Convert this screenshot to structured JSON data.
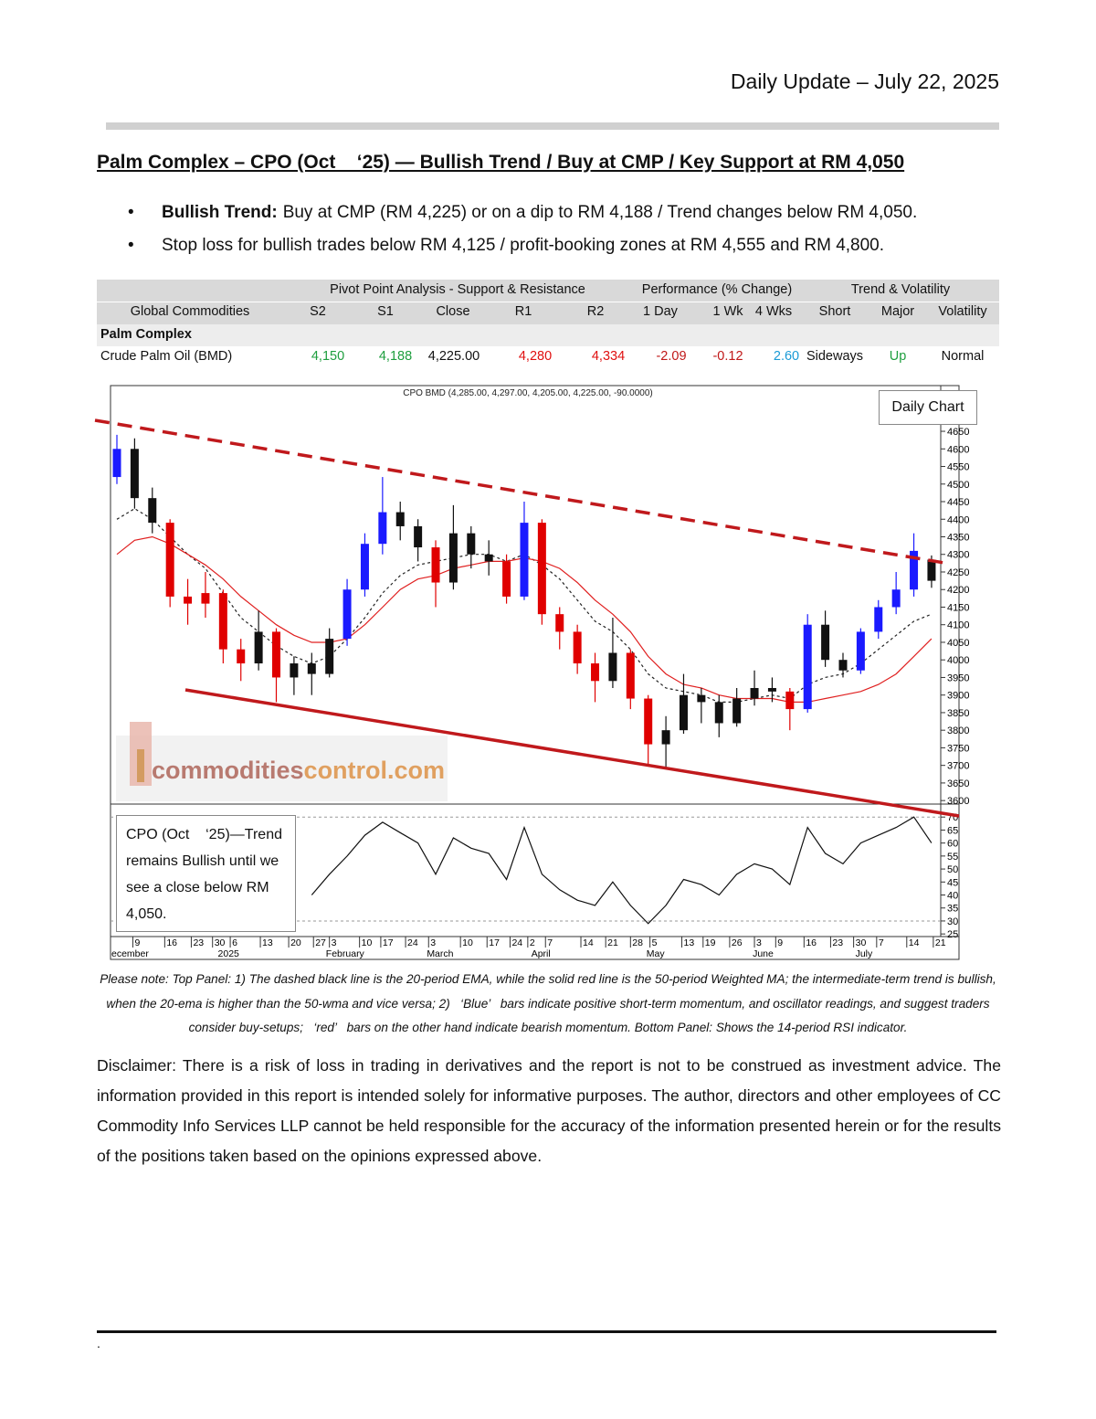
{
  "header": {
    "title": "Daily Update – July 22, 2025"
  },
  "heading": "Palm Complex – CPO (Oct    ‘25) — Bullish Trend / Buy at CMP / Key Support at RM 4,050",
  "bullets": [
    {
      "bold": "Bullish Trend:",
      "text": "Buy at CMP (RM 4,225) or on a dip to RM 4,188 / Trend changes below RM 4,050."
    },
    {
      "text": "Stop loss for bullish trades below RM 4,125 / profit-booking zones at RM 4,555 and RM 4,800."
    }
  ],
  "table": {
    "groups": [
      "Pivot Point Analysis - Support & Resistance",
      "Performance (% Change)",
      "Trend & Volatility"
    ],
    "headers": [
      "Global Commodities",
      "S2",
      "S1",
      "Close",
      "R1",
      "R2",
      "1 Day",
      "1 Wk",
      "4 Wks",
      "Short",
      "Major",
      "Volatility"
    ],
    "section": "Palm Complex",
    "rows": [
      [
        {
          "text": "Crude Palm Oil (BMD)",
          "color": "#111111"
        },
        {
          "text": "4,150",
          "color": "#1e9e3e"
        },
        {
          "text": "4,188",
          "color": "#1e9e3e"
        },
        {
          "text": "4,225.00",
          "color": "#111111"
        },
        {
          "text": "4,280",
          "color": "#e01010"
        },
        {
          "text": "4,334",
          "color": "#e01010"
        },
        {
          "text": "-2.09",
          "color": "#c01818"
        },
        {
          "text": "-0.12",
          "color": "#c01818"
        },
        {
          "text": "2.60",
          "color": "#1a9ad6"
        },
        {
          "text": "Sideways",
          "color": "#111111"
        },
        {
          "text": "Up",
          "color": "#1e9e3e"
        },
        {
          "text": "Normal",
          "color": "#111111"
        }
      ]
    ]
  },
  "chart_data": {
    "type": "candlestick",
    "title": "CPO BMD (4,285.00, 4,297.00, 4,205.00, 4,225.00, -90.0000)",
    "annotation": "Daily Chart",
    "watermark": [
      "commodities",
      "control.com"
    ],
    "note": "CPO (Oct    ‘25)—Trend remains Bullish until we see a close below RM 4,050.",
    "open": [
      4520,
      4600,
      4460,
      4390,
      4180,
      4160,
      4190,
      4030,
      3990,
      4080,
      3950,
      3990,
      3960,
      4060,
      4200,
      4330,
      4420,
      4380,
      4320,
      4220,
      4360,
      4300,
      4280,
      4180,
      4390,
      4130,
      4080,
      3990,
      3940,
      4020,
      3890,
      3760,
      3800,
      3900,
      3880,
      3820,
      3890,
      3920,
      3910,
      3860,
      4100,
      4000,
      3970,
      4080,
      4150,
      4200,
      4285
    ],
    "high": [
      4640,
      4630,
      4490,
      4400,
      4230,
      4250,
      4200,
      4060,
      4140,
      4090,
      4010,
      4020,
      4090,
      4230,
      4360,
      4520,
      4450,
      4400,
      4340,
      4440,
      4380,
      4340,
      4300,
      4450,
      4400,
      4150,
      4100,
      4020,
      4120,
      4030,
      3900,
      3840,
      3960,
      3920,
      3900,
      3920,
      3970,
      3950,
      3920,
      4130,
      4140,
      4020,
      4090,
      4170,
      4250,
      4360,
      4297
    ],
    "low": [
      4500,
      4430,
      4360,
      4150,
      4100,
      4120,
      3990,
      3940,
      3970,
      3880,
      3900,
      3900,
      3950,
      4040,
      4180,
      4300,
      4340,
      4280,
      4150,
      4200,
      4260,
      4240,
      4160,
      4170,
      4100,
      4030,
      3960,
      3880,
      3920,
      3860,
      3700,
      3690,
      3790,
      3820,
      3780,
      3810,
      3870,
      3880,
      3800,
      3850,
      3980,
      3950,
      3960,
      4060,
      4130,
      4180,
      4205
    ],
    "close": [
      4600,
      4460,
      4390,
      4180,
      4160,
      4190,
      4030,
      3990,
      4080,
      3950,
      3990,
      3960,
      4060,
      4200,
      4330,
      4420,
      4380,
      4320,
      4220,
      4360,
      4300,
      4280,
      4180,
      4390,
      4130,
      4080,
      3990,
      3940,
      4020,
      3890,
      3760,
      3800,
      3900,
      3880,
      3820,
      3890,
      3920,
      3910,
      3860,
      4100,
      4000,
      3970,
      4080,
      4150,
      4200,
      4310,
      4225
    ],
    "candle_colors": [
      "#1a1aff",
      "#111111",
      "#111111",
      "#e00000",
      "#e00000",
      "#e00000",
      "#e00000",
      "#e00000",
      "#111111",
      "#e00000",
      "#111111",
      "#111111",
      "#111111",
      "#1a1aff",
      "#1a1aff",
      "#1a1aff",
      "#111111",
      "#111111",
      "#e00000",
      "#111111",
      "#111111",
      "#111111",
      "#e00000",
      "#1a1aff",
      "#e00000",
      "#e00000",
      "#e00000",
      "#e00000",
      "#111111",
      "#e00000",
      "#e00000",
      "#111111",
      "#111111",
      "#111111",
      "#111111",
      "#111111",
      "#111111",
      "#111111",
      "#e00000",
      "#1a1aff",
      "#111111",
      "#111111",
      "#1a1aff",
      "#1a1aff",
      "#1a1aff",
      "#1a1aff",
      "#111111"
    ],
    "lines": [
      {
        "color": "#222222",
        "dash": true,
        "values": [
          4400,
          4430,
          4400,
          4350,
          4300,
          4260,
          4190,
          4120,
          4080,
          4040,
          4010,
          3990,
          4010,
          4060,
          4120,
          4190,
          4240,
          4270,
          4280,
          4290,
          4300,
          4300,
          4280,
          4300,
          4270,
          4230,
          4170,
          4110,
          4080,
          4030,
          3960,
          3920,
          3910,
          3900,
          3880,
          3880,
          3890,
          3900,
          3890,
          3930,
          3950,
          3960,
          3990,
          4030,
          4070,
          4110,
          4130
        ]
      },
      {
        "color": "#e02020",
        "dash": false,
        "values": [
          4300,
          4340,
          4350,
          4330,
          4300,
          4270,
          4230,
          4180,
          4140,
          4100,
          4070,
          4050,
          4050,
          4060,
          4100,
          4150,
          4200,
          4230,
          4240,
          4260,
          4270,
          4280,
          4280,
          4290,
          4280,
          4260,
          4220,
          4170,
          4130,
          4080,
          4010,
          3960,
          3930,
          3920,
          3900,
          3890,
          3890,
          3890,
          3880,
          3880,
          3890,
          3900,
          3910,
          3930,
          3960,
          4010,
          4060
        ]
      }
    ],
    "ylim": [
      3590,
      4780
    ],
    "yticks": [
      3600,
      3650,
      3700,
      3750,
      3800,
      3850,
      3900,
      3950,
      4000,
      4050,
      4100,
      4150,
      4200,
      4250,
      4300,
      4350,
      4400,
      4450,
      4500,
      4550,
      4600,
      4650
    ],
    "rsi": {
      "values": [
        null,
        null,
        null,
        null,
        null,
        null,
        null,
        null,
        null,
        null,
        null,
        40,
        48,
        55,
        63,
        68,
        64,
        60,
        48,
        62,
        58,
        56,
        46,
        66,
        48,
        42,
        38,
        36,
        45,
        36,
        29,
        36,
        46,
        44,
        40,
        48,
        52,
        50,
        44,
        66,
        56,
        52,
        60,
        63,
        66,
        70,
        60
      ],
      "ylim": [
        24,
        75
      ],
      "yticks": [
        25,
        30,
        35,
        40,
        45,
        50,
        55,
        60,
        65,
        70
      ],
      "levels": [
        70,
        30
      ]
    },
    "xticks": [
      {
        "value": 0.9,
        "label": "9"
      },
      {
        "value": 2.7,
        "label": "16"
      },
      {
        "value": 4.2,
        "label": "23"
      },
      {
        "value": 5.4,
        "label": "30"
      },
      {
        "value": 6.4,
        "label": "6"
      },
      {
        "value": 8.1,
        "label": "13"
      },
      {
        "value": 9.7,
        "label": "20"
      },
      {
        "value": 11.1,
        "label": "27"
      },
      {
        "value": 12.0,
        "label": "3"
      },
      {
        "value": 13.7,
        "label": "10"
      },
      {
        "value": 14.9,
        "label": "17"
      },
      {
        "value": 16.3,
        "label": "24"
      },
      {
        "value": 17.6,
        "label": "3"
      },
      {
        "value": 19.4,
        "label": "10"
      },
      {
        "value": 20.9,
        "label": "17"
      },
      {
        "value": 22.2,
        "label": "24"
      },
      {
        "value": 23.2,
        "label": "2"
      },
      {
        "value": 24.2,
        "label": "7"
      },
      {
        "value": 26.2,
        "label": "14"
      },
      {
        "value": 27.6,
        "label": "21"
      },
      {
        "value": 29.0,
        "label": "28"
      },
      {
        "value": 30.1,
        "label": "5"
      },
      {
        "value": 31.9,
        "label": "13"
      },
      {
        "value": 33.1,
        "label": "19"
      },
      {
        "value": 34.6,
        "label": "26"
      },
      {
        "value": 36.0,
        "label": "3"
      },
      {
        "value": 37.2,
        "label": "9"
      },
      {
        "value": 38.8,
        "label": "16"
      },
      {
        "value": 40.3,
        "label": "23"
      },
      {
        "value": 41.6,
        "label": "30"
      },
      {
        "value": 42.9,
        "label": "7"
      },
      {
        "value": 44.6,
        "label": "14"
      },
      {
        "value": 46.1,
        "label": "21"
      }
    ],
    "months": [
      {
        "value": -0.35,
        "label": "ecember"
      },
      {
        "value": 5.7,
        "label": "2025"
      },
      {
        "value": 11.8,
        "label": "February"
      },
      {
        "value": 17.5,
        "label": "March"
      },
      {
        "value": 23.4,
        "label": "April"
      },
      {
        "value": 29.9,
        "label": "May"
      },
      {
        "value": 35.9,
        "label": "June"
      },
      {
        "value": 41.7,
        "label": "July"
      }
    ]
  },
  "caption": "Please note: Top Panel: 1) The dashed black line is the 20-period EMA, while the solid red line is the 50-period Weighted MA; the intermediate-term trend is bullish, when the 20-ema is higher than the 50-wma and vice versa; 2)   ‘Blue’   bars indicate positive short-term momentum, and oscillator readings, and suggest traders consider buy-setups;   ‘red’   bars on the other hand indicate bearish momentum. Bottom Panel: Shows the 14-period RSI indicator.",
  "disclaimer": "Disclaimer: There is a risk of loss in trading in derivatives and the report is not to be construed as investment advice. The information provided in this report is intended solely for informative purposes. The author, directors and other employees of CC Commodity Info Services LLP cannot be held responsible for the accuracy of the information presented herein or for the results of the positions taken based on the opinions expressed above.",
  "footer": "."
}
